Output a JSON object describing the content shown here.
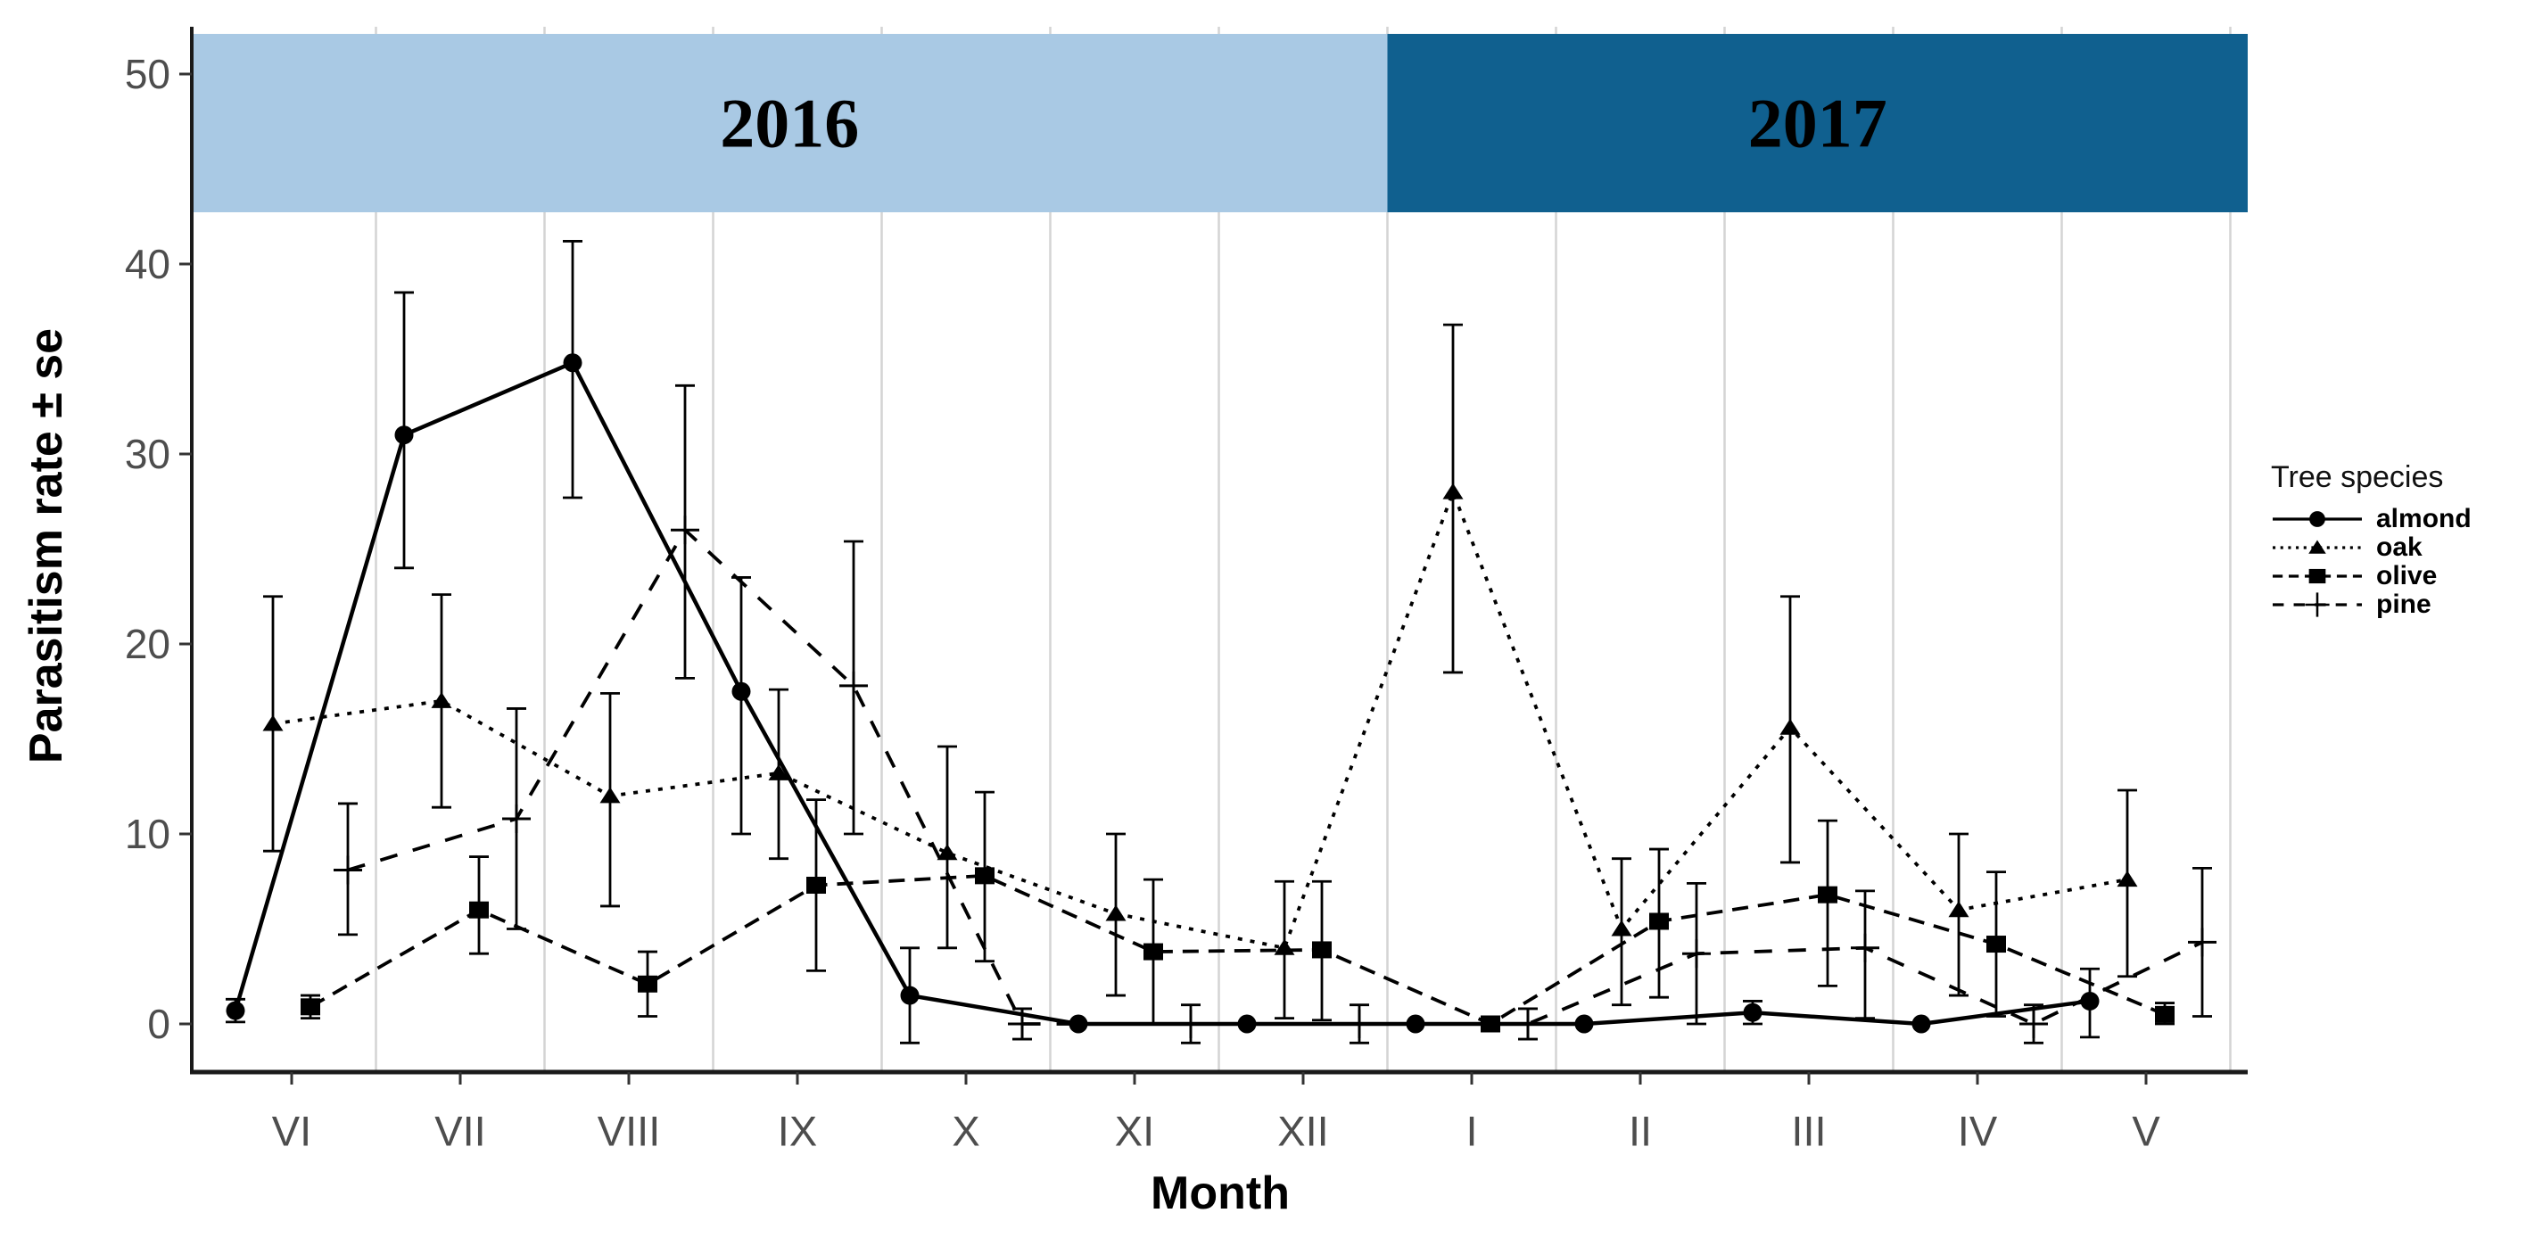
{
  "axes": {
    "y_label": "Parasitism rate ± se",
    "x_label": "Month",
    "y_ticks": [
      0,
      10,
      20,
      30,
      40,
      50
    ]
  },
  "legend": {
    "title": "Tree species",
    "items": [
      {
        "label": "almond",
        "icon": "solid-line-circle-marker"
      },
      {
        "label": "oak",
        "icon": "dotted-line-triangle-marker"
      },
      {
        "label": "olive",
        "icon": "dashed-line-square-marker"
      },
      {
        "label": "pine",
        "icon": "longdash-line-plus-marker"
      }
    ]
  },
  "colors": {
    "band_2016": "#a9c9e4",
    "band_2017": "#10608f",
    "tick_text": "#4d4d4d",
    "axis_line": "#1a1a1a",
    "gridline": "#d4d4d4",
    "series": "#000000"
  },
  "chart_data": {
    "type": "line",
    "title": "",
    "xlabel": "Month",
    "ylabel": "Parasitism rate ± se",
    "x_categories": [
      "VI",
      "VII",
      "VIII",
      "IX",
      "X",
      "XI",
      "XII",
      "I",
      "II",
      "III",
      "IV",
      "V"
    ],
    "y_ticks": [
      0,
      10,
      20,
      30,
      40,
      50
    ],
    "ylim": [
      -2.5,
      52.5
    ],
    "grid": "vertical-between-categories-only",
    "legend_position": "right",
    "error_bars": true,
    "year_bands": [
      {
        "label": "2016",
        "from_month": "VI",
        "to_month": "XII",
        "color": "#a9c9e4"
      },
      {
        "label": "2017",
        "from_month": "I",
        "to_month": "V",
        "color": "#10608f"
      }
    ],
    "series": [
      {
        "name": "almond",
        "marker": "circle",
        "linestyle": "solid",
        "values": [
          0.7,
          31.0,
          34.8,
          17.5,
          1.5,
          0,
          0,
          0,
          0,
          0.6,
          0,
          1.2
        ],
        "err_low": [
          0.1,
          24.0,
          27.7,
          10.0,
          -1.0,
          0,
          0,
          0,
          0,
          0.0,
          0,
          -0.7
        ],
        "err_high": [
          1.3,
          38.5,
          41.2,
          23.5,
          4.0,
          0,
          0,
          0,
          0,
          1.2,
          0,
          2.9
        ]
      },
      {
        "name": "oak",
        "marker": "triangle",
        "linestyle": "dotted",
        "values": [
          15.8,
          17.0,
          12.0,
          13.2,
          9.0,
          5.8,
          4.0,
          28.0,
          5.0,
          15.6,
          6.0,
          7.6
        ],
        "err_low": [
          9.1,
          11.4,
          6.2,
          8.7,
          4.0,
          1.5,
          0.3,
          18.5,
          1.0,
          8.5,
          1.5,
          2.5
        ],
        "err_high": [
          22.5,
          22.6,
          17.4,
          17.6,
          14.6,
          10.0,
          7.5,
          36.8,
          8.7,
          22.5,
          10.0,
          12.3
        ]
      },
      {
        "name": "olive",
        "marker": "square",
        "linestyle": "dashed",
        "values": [
          0.9,
          6.0,
          2.1,
          7.3,
          7.8,
          3.8,
          3.9,
          0,
          5.4,
          6.8,
          4.2,
          0.5
        ],
        "err_low": [
          0.3,
          3.7,
          0.4,
          2.8,
          3.3,
          0.0,
          0.2,
          0,
          1.4,
          2.0,
          0.4,
          0.0
        ],
        "err_high": [
          1.5,
          8.8,
          3.8,
          11.8,
          12.2,
          7.6,
          7.5,
          0.3,
          9.2,
          10.7,
          8.0,
          1.1
        ]
      },
      {
        "name": "pine",
        "marker": "plus",
        "linestyle": "longdash",
        "values": [
          8.1,
          10.8,
          26.0,
          17.8,
          0,
          0,
          0,
          0,
          3.7,
          4.0,
          0,
          4.3
        ],
        "err_low": [
          4.7,
          5.0,
          18.2,
          10.0,
          -0.8,
          -1.0,
          -1.0,
          -0.8,
          0.0,
          0.3,
          -1.0,
          0.4
        ],
        "err_high": [
          11.6,
          16.6,
          33.6,
          25.4,
          0.8,
          1.0,
          1.0,
          0.8,
          7.4,
          7.0,
          1.0,
          8.2
        ]
      }
    ]
  }
}
